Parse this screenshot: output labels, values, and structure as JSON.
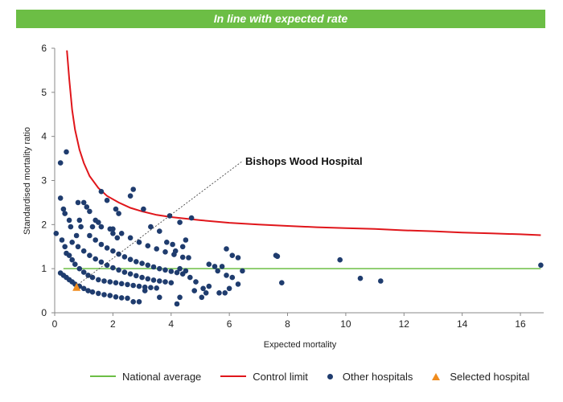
{
  "banner": {
    "text": "In line with expected rate",
    "color": "#6cbe45"
  },
  "chart_data": {
    "type": "scatter",
    "title": "",
    "xlabel": "Expected mortality",
    "ylabel": "Standardised mortality ratio",
    "xlim": [
      0,
      16.8
    ],
    "ylim": [
      0,
      6
    ],
    "xticks": [
      0,
      2,
      4,
      6,
      8,
      10,
      12,
      14,
      16
    ],
    "yticks": [
      0,
      1,
      2,
      3,
      4,
      5,
      6
    ],
    "grid": false,
    "legend_position": "bottom",
    "national_average": {
      "name": "National average",
      "y": 1,
      "x_range": [
        0.3,
        16.7
      ],
      "color": "#6cbe45"
    },
    "control_limit": {
      "name": "Control limit",
      "color": "#e0161b",
      "points": [
        [
          0.42,
          5.95
        ],
        [
          0.5,
          5.3
        ],
        [
          0.6,
          4.6
        ],
        [
          0.7,
          4.15
        ],
        [
          0.85,
          3.7
        ],
        [
          1.0,
          3.4
        ],
        [
          1.2,
          3.1
        ],
        [
          1.5,
          2.83
        ],
        [
          1.8,
          2.65
        ],
        [
          2.2,
          2.5
        ],
        [
          2.6,
          2.38
        ],
        [
          3.0,
          2.3
        ],
        [
          3.5,
          2.22
        ],
        [
          4.0,
          2.17
        ],
        [
          5.0,
          2.1
        ],
        [
          6.0,
          2.04
        ],
        [
          7.0,
          2.0
        ],
        [
          8.0,
          1.97
        ],
        [
          9.0,
          1.94
        ],
        [
          10.0,
          1.92
        ],
        [
          11.0,
          1.9
        ],
        [
          12.0,
          1.87
        ],
        [
          13.0,
          1.85
        ],
        [
          14.0,
          1.82
        ],
        [
          15.0,
          1.8
        ],
        [
          16.0,
          1.78
        ],
        [
          16.7,
          1.76
        ]
      ]
    },
    "other_hospitals": {
      "name": "Other hospitals",
      "color": "#1f3c6e",
      "points": [
        [
          0.05,
          1.8
        ],
        [
          0.2,
          3.4
        ],
        [
          0.4,
          3.65
        ],
        [
          0.2,
          2.6
        ],
        [
          0.3,
          2.35
        ],
        [
          0.35,
          2.25
        ],
        [
          0.5,
          2.1
        ],
        [
          0.55,
          1.95
        ],
        [
          0.25,
          1.65
        ],
        [
          0.35,
          1.5
        ],
        [
          0.8,
          2.5
        ],
        [
          0.85,
          2.1
        ],
        [
          0.75,
          1.75
        ],
        [
          0.9,
          1.95
        ],
        [
          1.0,
          2.5
        ],
        [
          1.1,
          2.4
        ],
        [
          1.2,
          2.3
        ],
        [
          1.4,
          2.1
        ],
        [
          1.6,
          2.75
        ],
        [
          1.8,
          2.55
        ],
        [
          2.1,
          2.35
        ],
        [
          2.2,
          2.25
        ],
        [
          1.3,
          1.95
        ],
        [
          1.5,
          2.05
        ],
        [
          1.6,
          1.95
        ],
        [
          1.9,
          1.9
        ],
        [
          2.0,
          1.8
        ],
        [
          2.15,
          1.7
        ],
        [
          2.6,
          2.65
        ],
        [
          2.7,
          2.8
        ],
        [
          3.05,
          2.35
        ],
        [
          3.3,
          1.95
        ],
        [
          3.6,
          1.85
        ],
        [
          3.85,
          1.6
        ],
        [
          3.95,
          2.2
        ],
        [
          4.05,
          1.55
        ],
        [
          4.15,
          1.4
        ],
        [
          4.3,
          2.05
        ],
        [
          4.4,
          1.5
        ],
        [
          4.5,
          1.65
        ],
        [
          4.7,
          2.15
        ],
        [
          4.6,
          1.25
        ],
        [
          4.3,
          1.0
        ],
        [
          4.5,
          0.95
        ],
        [
          4.65,
          0.8
        ],
        [
          4.85,
          0.7
        ],
        [
          5.1,
          0.55
        ],
        [
          5.3,
          1.1
        ],
        [
          5.5,
          1.05
        ],
        [
          5.6,
          0.95
        ],
        [
          5.75,
          1.05
        ],
        [
          5.9,
          1.45
        ],
        [
          6.1,
          1.3
        ],
        [
          6.3,
          1.25
        ],
        [
          5.9,
          0.85
        ],
        [
          6.1,
          0.8
        ],
        [
          6.45,
          0.95
        ],
        [
          6.3,
          0.65
        ],
        [
          6.0,
          0.55
        ],
        [
          5.65,
          0.45
        ],
        [
          5.85,
          0.45
        ],
        [
          5.3,
          0.6
        ],
        [
          5.2,
          0.45
        ],
        [
          5.05,
          0.35
        ],
        [
          4.8,
          0.5
        ],
        [
          4.3,
          0.35
        ],
        [
          4.2,
          0.2
        ],
        [
          3.6,
          0.35
        ],
        [
          3.1,
          0.5
        ],
        [
          2.9,
          0.25
        ],
        [
          2.7,
          0.25
        ],
        [
          7.6,
          1.3
        ],
        [
          7.65,
          1.28
        ],
        [
          7.8,
          0.68
        ],
        [
          9.8,
          1.2
        ],
        [
          10.5,
          0.78
        ],
        [
          11.2,
          0.72
        ],
        [
          16.7,
          1.08
        ],
        [
          0.4,
          1.35
        ],
        [
          0.5,
          1.3
        ],
        [
          0.6,
          1.2
        ],
        [
          0.7,
          1.1
        ],
        [
          0.85,
          1.0
        ],
        [
          1.0,
          0.92
        ],
        [
          1.15,
          0.85
        ],
        [
          1.3,
          0.8
        ],
        [
          1.5,
          0.75
        ],
        [
          1.7,
          0.72
        ],
        [
          1.9,
          0.7
        ],
        [
          2.1,
          0.68
        ],
        [
          2.3,
          0.66
        ],
        [
          2.5,
          0.64
        ],
        [
          2.7,
          0.62
        ],
        [
          2.9,
          0.6
        ],
        [
          3.1,
          0.58
        ],
        [
          3.3,
          0.57
        ],
        [
          3.5,
          0.56
        ],
        [
          0.2,
          0.9
        ],
        [
          0.3,
          0.85
        ],
        [
          0.4,
          0.8
        ],
        [
          0.5,
          0.75
        ],
        [
          0.6,
          0.7
        ],
        [
          0.7,
          0.65
        ],
        [
          0.85,
          0.6
        ],
        [
          1.0,
          0.55
        ],
        [
          1.15,
          0.5
        ],
        [
          1.3,
          0.47
        ],
        [
          1.5,
          0.44
        ],
        [
          1.7,
          0.41
        ],
        [
          1.9,
          0.39
        ],
        [
          2.1,
          0.36
        ],
        [
          2.3,
          0.34
        ],
        [
          2.5,
          0.33
        ],
        [
          0.6,
          1.6
        ],
        [
          0.8,
          1.5
        ],
        [
          1.0,
          1.4
        ],
        [
          1.2,
          1.3
        ],
        [
          1.4,
          1.22
        ],
        [
          1.6,
          1.15
        ],
        [
          1.8,
          1.08
        ],
        [
          2.0,
          1.02
        ],
        [
          2.2,
          0.97
        ],
        [
          2.4,
          0.92
        ],
        [
          2.6,
          0.88
        ],
        [
          2.8,
          0.84
        ],
        [
          3.0,
          0.8
        ],
        [
          3.2,
          0.77
        ],
        [
          3.4,
          0.74
        ],
        [
          3.6,
          0.72
        ],
        [
          3.8,
          0.7
        ],
        [
          4.0,
          0.68
        ],
        [
          1.2,
          1.75
        ],
        [
          1.4,
          1.65
        ],
        [
          1.6,
          1.55
        ],
        [
          1.8,
          1.47
        ],
        [
          2.0,
          1.4
        ],
        [
          2.2,
          1.33
        ],
        [
          2.4,
          1.27
        ],
        [
          2.6,
          1.21
        ],
        [
          2.8,
          1.16
        ],
        [
          3.0,
          1.12
        ],
        [
          3.2,
          1.08
        ],
        [
          3.4,
          1.04
        ],
        [
          3.6,
          1.0
        ],
        [
          3.8,
          0.97
        ],
        [
          4.0,
          0.94
        ],
        [
          4.2,
          0.91
        ],
        [
          4.4,
          0.88
        ],
        [
          2.0,
          1.9
        ],
        [
          2.3,
          1.8
        ],
        [
          2.6,
          1.7
        ],
        [
          2.9,
          1.6
        ],
        [
          3.2,
          1.52
        ],
        [
          3.5,
          1.45
        ],
        [
          3.8,
          1.38
        ],
        [
          4.1,
          1.32
        ],
        [
          4.4,
          1.26
        ]
      ]
    },
    "selected_hospital": {
      "name": "Selected hospital",
      "x": 0.75,
      "y": 0.57,
      "color": "#f08c1e",
      "annotation": "Bishops Wood Hospital"
    }
  },
  "legend": {
    "national_average": "National average",
    "control_limit": "Control limit",
    "other_hospitals": "Other hospitals",
    "selected_hospital": "Selected hospital"
  }
}
